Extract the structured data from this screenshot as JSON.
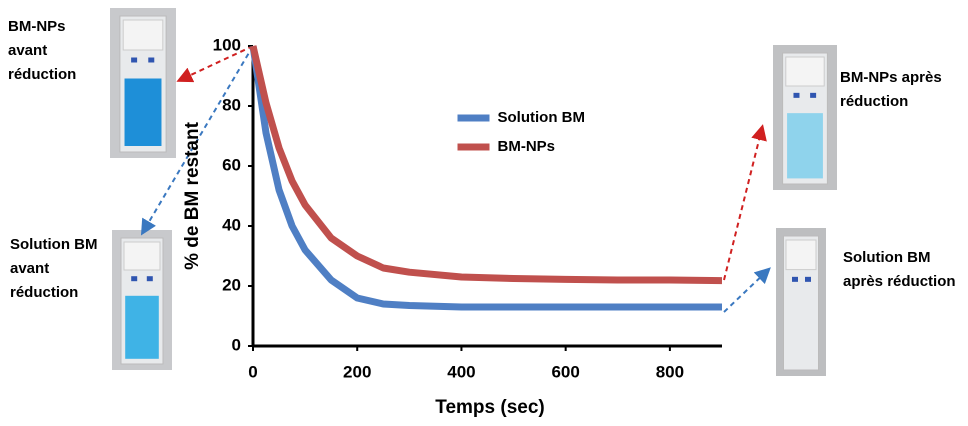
{
  "chart_data": {
    "type": "line",
    "xlabel": "Temps (sec)",
    "ylabel": "% de BM restant",
    "x": [
      0,
      25,
      50,
      75,
      100,
      150,
      200,
      250,
      300,
      400,
      500,
      600,
      700,
      800,
      900
    ],
    "series": [
      {
        "name": "Solution BM",
        "color": "#4f7fc4",
        "values": [
          100,
          71,
          52,
          40,
          32,
          22,
          16,
          14,
          13.5,
          13,
          13,
          13,
          13,
          13,
          13
        ]
      },
      {
        "name": "BM-NPs",
        "color": "#c0504d",
        "values": [
          100,
          81,
          66,
          55,
          47,
          36,
          30,
          26,
          24.6,
          23,
          22.5,
          22.2,
          22,
          22,
          21.8
        ]
      }
    ],
    "xlim": [
      0,
      900
    ],
    "xticks": [
      0,
      200,
      400,
      600,
      800
    ],
    "ylim": [
      0,
      100
    ],
    "yticks": [
      0,
      20,
      40,
      60,
      80,
      100
    ],
    "legend": "upper center",
    "annotations": [
      {
        "lines": [
          "BM-NPs",
          "avant",
          "réduction"
        ]
      },
      {
        "lines": [
          "Solution BM",
          "avant",
          "réduction"
        ]
      },
      {
        "lines": [
          "BM-NPs après",
          "réduction"
        ]
      },
      {
        "lines": [
          "Solution BM",
          "après réduction"
        ]
      }
    ]
  }
}
